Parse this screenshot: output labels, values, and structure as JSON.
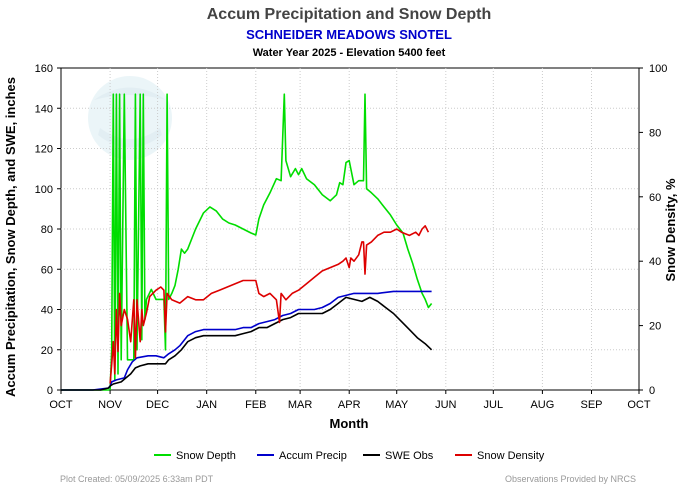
{
  "chart_data": {
    "type": "line",
    "title": "Accum Precipitation and Snow Depth",
    "subtitle": "SCHNEIDER MEADOWS SNOTEL",
    "subtitle2": "Water Year 2025 -  Elevation 5400 feet",
    "xlabel": "Month",
    "ylabel": "Accum Precipitation, Snow Depth, and SWE, inches",
    "y2label": "Snow Density, %",
    "x_ticks": [
      "OCT",
      "NOV",
      "DEC",
      "JAN",
      "FEB",
      "MAR",
      "APR",
      "MAY",
      "JUN",
      "JUL",
      "AUG",
      "SEP",
      "OCT"
    ],
    "ylim": [
      0,
      160
    ],
    "y_ticks": [
      0,
      20,
      40,
      60,
      80,
      100,
      120,
      140,
      160
    ],
    "y2lim": [
      0,
      100
    ],
    "y2_ticks": [
      0,
      20,
      40,
      60,
      80,
      100
    ],
    "grid": true,
    "legend_position": "bottom",
    "footer_left": "Plot Created: 05/09/2025 6:33am PDT",
    "footer_right": "Observations Provided by NRCS",
    "series": [
      {
        "name": "Snow Depth",
        "color": "#00dd00",
        "axis": "left",
        "points": [
          [
            0,
            0
          ],
          [
            28,
            0
          ],
          [
            31,
            0
          ],
          [
            32,
            20
          ],
          [
            33,
            147
          ],
          [
            34,
            5
          ],
          [
            35,
            147
          ],
          [
            36,
            8
          ],
          [
            37,
            147
          ],
          [
            38,
            15
          ],
          [
            40,
            147
          ],
          [
            42,
            15
          ],
          [
            46,
            15
          ],
          [
            47,
            147
          ],
          [
            48,
            20
          ],
          [
            50,
            147
          ],
          [
            51,
            25
          ],
          [
            52,
            147
          ],
          [
            53,
            35
          ],
          [
            54,
            45
          ],
          [
            57,
            50
          ],
          [
            60,
            45
          ],
          [
            63,
            45
          ],
          [
            65,
            45
          ],
          [
            66,
            20
          ],
          [
            67,
            147
          ],
          [
            68,
            45
          ],
          [
            70,
            48
          ],
          [
            72,
            52
          ],
          [
            74,
            60
          ],
          [
            76,
            70
          ],
          [
            78,
            68
          ],
          [
            80,
            70
          ],
          [
            85,
            80
          ],
          [
            90,
            88
          ],
          [
            94,
            91
          ],
          [
            98,
            89
          ],
          [
            102,
            85
          ],
          [
            106,
            83
          ],
          [
            110,
            82
          ],
          [
            115,
            80
          ],
          [
            120,
            78
          ],
          [
            123,
            77
          ],
          [
            125,
            85
          ],
          [
            128,
            92
          ],
          [
            132,
            98
          ],
          [
            136,
            105
          ],
          [
            139,
            104
          ],
          [
            141,
            147
          ],
          [
            142,
            114
          ],
          [
            145,
            106
          ],
          [
            148,
            110
          ],
          [
            150,
            107
          ],
          [
            152,
            110
          ],
          [
            155,
            105
          ],
          [
            160,
            102
          ],
          [
            165,
            97
          ],
          [
            170,
            94
          ],
          [
            174,
            97
          ],
          [
            176,
            103
          ],
          [
            178,
            102
          ],
          [
            180,
            113
          ],
          [
            182,
            114
          ],
          [
            183,
            110
          ],
          [
            185,
            102
          ],
          [
            188,
            104
          ],
          [
            191,
            104
          ],
          [
            192,
            147
          ],
          [
            193,
            100
          ],
          [
            196,
            98
          ],
          [
            200,
            95
          ],
          [
            204,
            91
          ],
          [
            208,
            87
          ],
          [
            212,
            82
          ],
          [
            216,
            78
          ],
          [
            219,
            70
          ],
          [
            222,
            63
          ],
          [
            225,
            55
          ],
          [
            228,
            48
          ],
          [
            230,
            45
          ],
          [
            232,
            41
          ],
          [
            234,
            43
          ]
        ]
      },
      {
        "name": "Accum Precip",
        "color": "#0000cc",
        "axis": "left",
        "points": [
          [
            0,
            0
          ],
          [
            20,
            0
          ],
          [
            30,
            1
          ],
          [
            31,
            2
          ],
          [
            32,
            4
          ],
          [
            35,
            5
          ],
          [
            40,
            6
          ],
          [
            42,
            10
          ],
          [
            45,
            14
          ],
          [
            48,
            16
          ],
          [
            55,
            17
          ],
          [
            60,
            17
          ],
          [
            65,
            16
          ],
          [
            68,
            18
          ],
          [
            72,
            20
          ],
          [
            75,
            22
          ],
          [
            80,
            27
          ],
          [
            85,
            29
          ],
          [
            90,
            30
          ],
          [
            100,
            30
          ],
          [
            110,
            30
          ],
          [
            115,
            31
          ],
          [
            120,
            31
          ],
          [
            125,
            33
          ],
          [
            130,
            34
          ],
          [
            135,
            35
          ],
          [
            140,
            37
          ],
          [
            145,
            38
          ],
          [
            150,
            40
          ],
          [
            155,
            40
          ],
          [
            160,
            40
          ],
          [
            165,
            41
          ],
          [
            170,
            43
          ],
          [
            175,
            46
          ],
          [
            180,
            47
          ],
          [
            185,
            48
          ],
          [
            190,
            48
          ],
          [
            200,
            48
          ],
          [
            210,
            49
          ],
          [
            220,
            49
          ],
          [
            234,
            49
          ]
        ]
      },
      {
        "name": "SWE Obs",
        "color": "#000000",
        "axis": "left",
        "points": [
          [
            0,
            0
          ],
          [
            25,
            0
          ],
          [
            30,
            1
          ],
          [
            31,
            2
          ],
          [
            33,
            3
          ],
          [
            38,
            4
          ],
          [
            41,
            6
          ],
          [
            44,
            8
          ],
          [
            47,
            11
          ],
          [
            50,
            12
          ],
          [
            55,
            13
          ],
          [
            60,
            13
          ],
          [
            66,
            13
          ],
          [
            68,
            15
          ],
          [
            72,
            17
          ],
          [
            76,
            20
          ],
          [
            80,
            24
          ],
          [
            85,
            26
          ],
          [
            90,
            27
          ],
          [
            100,
            27
          ],
          [
            110,
            27
          ],
          [
            115,
            28
          ],
          [
            120,
            29
          ],
          [
            125,
            31
          ],
          [
            130,
            31
          ],
          [
            135,
            33
          ],
          [
            140,
            35
          ],
          [
            145,
            36
          ],
          [
            150,
            38
          ],
          [
            155,
            38
          ],
          [
            160,
            38
          ],
          [
            165,
            38
          ],
          [
            170,
            40
          ],
          [
            175,
            43
          ],
          [
            180,
            46
          ],
          [
            185,
            45
          ],
          [
            190,
            44
          ],
          [
            195,
            46
          ],
          [
            200,
            44
          ],
          [
            205,
            41
          ],
          [
            210,
            38
          ],
          [
            215,
            34
          ],
          [
            220,
            30
          ],
          [
            225,
            26
          ],
          [
            230,
            23
          ],
          [
            234,
            20
          ]
        ]
      },
      {
        "name": "Snow Density",
        "color": "#dd0000",
        "axis": "right",
        "points": [
          [
            31,
            2
          ],
          [
            32,
            8
          ],
          [
            33,
            15
          ],
          [
            34,
            5
          ],
          [
            35,
            25
          ],
          [
            36,
            12
          ],
          [
            37,
            30
          ],
          [
            38,
            20
          ],
          [
            40,
            25
          ],
          [
            42,
            22
          ],
          [
            44,
            15
          ],
          [
            46,
            28
          ],
          [
            47,
            10
          ],
          [
            48,
            28
          ],
          [
            50,
            15
          ],
          [
            51,
            25
          ],
          [
            52,
            20
          ],
          [
            54,
            24
          ],
          [
            56,
            29
          ],
          [
            58,
            30
          ],
          [
            60,
            31
          ],
          [
            63,
            32
          ],
          [
            65,
            31
          ],
          [
            66,
            18
          ],
          [
            67,
            30
          ],
          [
            70,
            28
          ],
          [
            75,
            27
          ],
          [
            80,
            29
          ],
          [
            85,
            28
          ],
          [
            90,
            28
          ],
          [
            95,
            30
          ],
          [
            100,
            31
          ],
          [
            105,
            32
          ],
          [
            110,
            33
          ],
          [
            115,
            34
          ],
          [
            120,
            34
          ],
          [
            123,
            34
          ],
          [
            125,
            30
          ],
          [
            128,
            29
          ],
          [
            132,
            30
          ],
          [
            136,
            28
          ],
          [
            138,
            21
          ],
          [
            139,
            30
          ],
          [
            142,
            28
          ],
          [
            146,
            30
          ],
          [
            150,
            31
          ],
          [
            155,
            33
          ],
          [
            160,
            35
          ],
          [
            165,
            37
          ],
          [
            170,
            38
          ],
          [
            175,
            39
          ],
          [
            178,
            40
          ],
          [
            180,
            41
          ],
          [
            182,
            38
          ],
          [
            183,
            41
          ],
          [
            185,
            40
          ],
          [
            188,
            42
          ],
          [
            190,
            46
          ],
          [
            191,
            46
          ],
          [
            192,
            36
          ],
          [
            193,
            45
          ],
          [
            196,
            46
          ],
          [
            200,
            48
          ],
          [
            204,
            49
          ],
          [
            208,
            49
          ],
          [
            212,
            50
          ],
          [
            215,
            49
          ],
          [
            220,
            48
          ],
          [
            224,
            49
          ],
          [
            226,
            48
          ],
          [
            228,
            50
          ],
          [
            230,
            51
          ],
          [
            232,
            49
          ]
        ]
      }
    ]
  }
}
